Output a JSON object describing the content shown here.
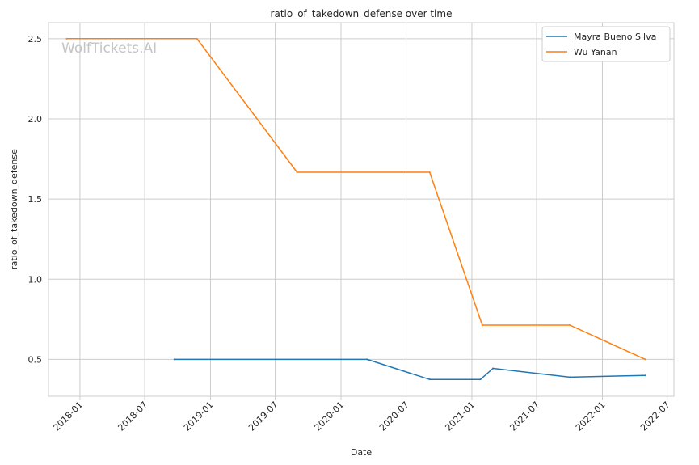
{
  "chart_data": {
    "type": "line",
    "title": "ratio_of_takedown_defense over time",
    "xlabel": "Date",
    "ylabel": "ratio_of_takedown_defense",
    "xlim": [
      "2017-10-05",
      "2022-07-20"
    ],
    "ylim": [
      0.27,
      2.6
    ],
    "x_ticks": [
      "2018-01",
      "2018-07",
      "2019-01",
      "2019-07",
      "2020-01",
      "2020-07",
      "2021-01",
      "2021-07",
      "2022-01",
      "2022-07"
    ],
    "y_ticks": [
      "0.5",
      "1.0",
      "1.5",
      "2.0",
      "2.5"
    ],
    "grid": true,
    "legend_position": "top-right",
    "watermark": "WolfTickets.AI",
    "series": [
      {
        "name": "Mayra Bueno Silva",
        "color": "#1f77b4",
        "points": [
          {
            "x": "2018-09-22",
            "y": 0.5
          },
          {
            "x": "2020-03-14",
            "y": 0.5
          },
          {
            "x": "2020-09-05",
            "y": 0.375
          },
          {
            "x": "2021-01-25",
            "y": 0.375
          },
          {
            "x": "2021-03-01",
            "y": 0.444
          },
          {
            "x": "2021-10-02",
            "y": 0.389
          },
          {
            "x": "2022-05-01",
            "y": 0.4
          }
        ]
      },
      {
        "name": "Wu Yanan",
        "color": "#ff7f0e",
        "points": [
          {
            "x": "2017-11-25",
            "y": 2.5
          },
          {
            "x": "2018-11-24",
            "y": 2.5
          },
          {
            "x": "2019-08-31",
            "y": 1.667
          },
          {
            "x": "2020-09-05",
            "y": 1.667
          },
          {
            "x": "2021-01-30",
            "y": 0.714
          },
          {
            "x": "2021-10-02",
            "y": 0.714
          },
          {
            "x": "2022-05-01",
            "y": 0.5
          }
        ]
      }
    ]
  }
}
